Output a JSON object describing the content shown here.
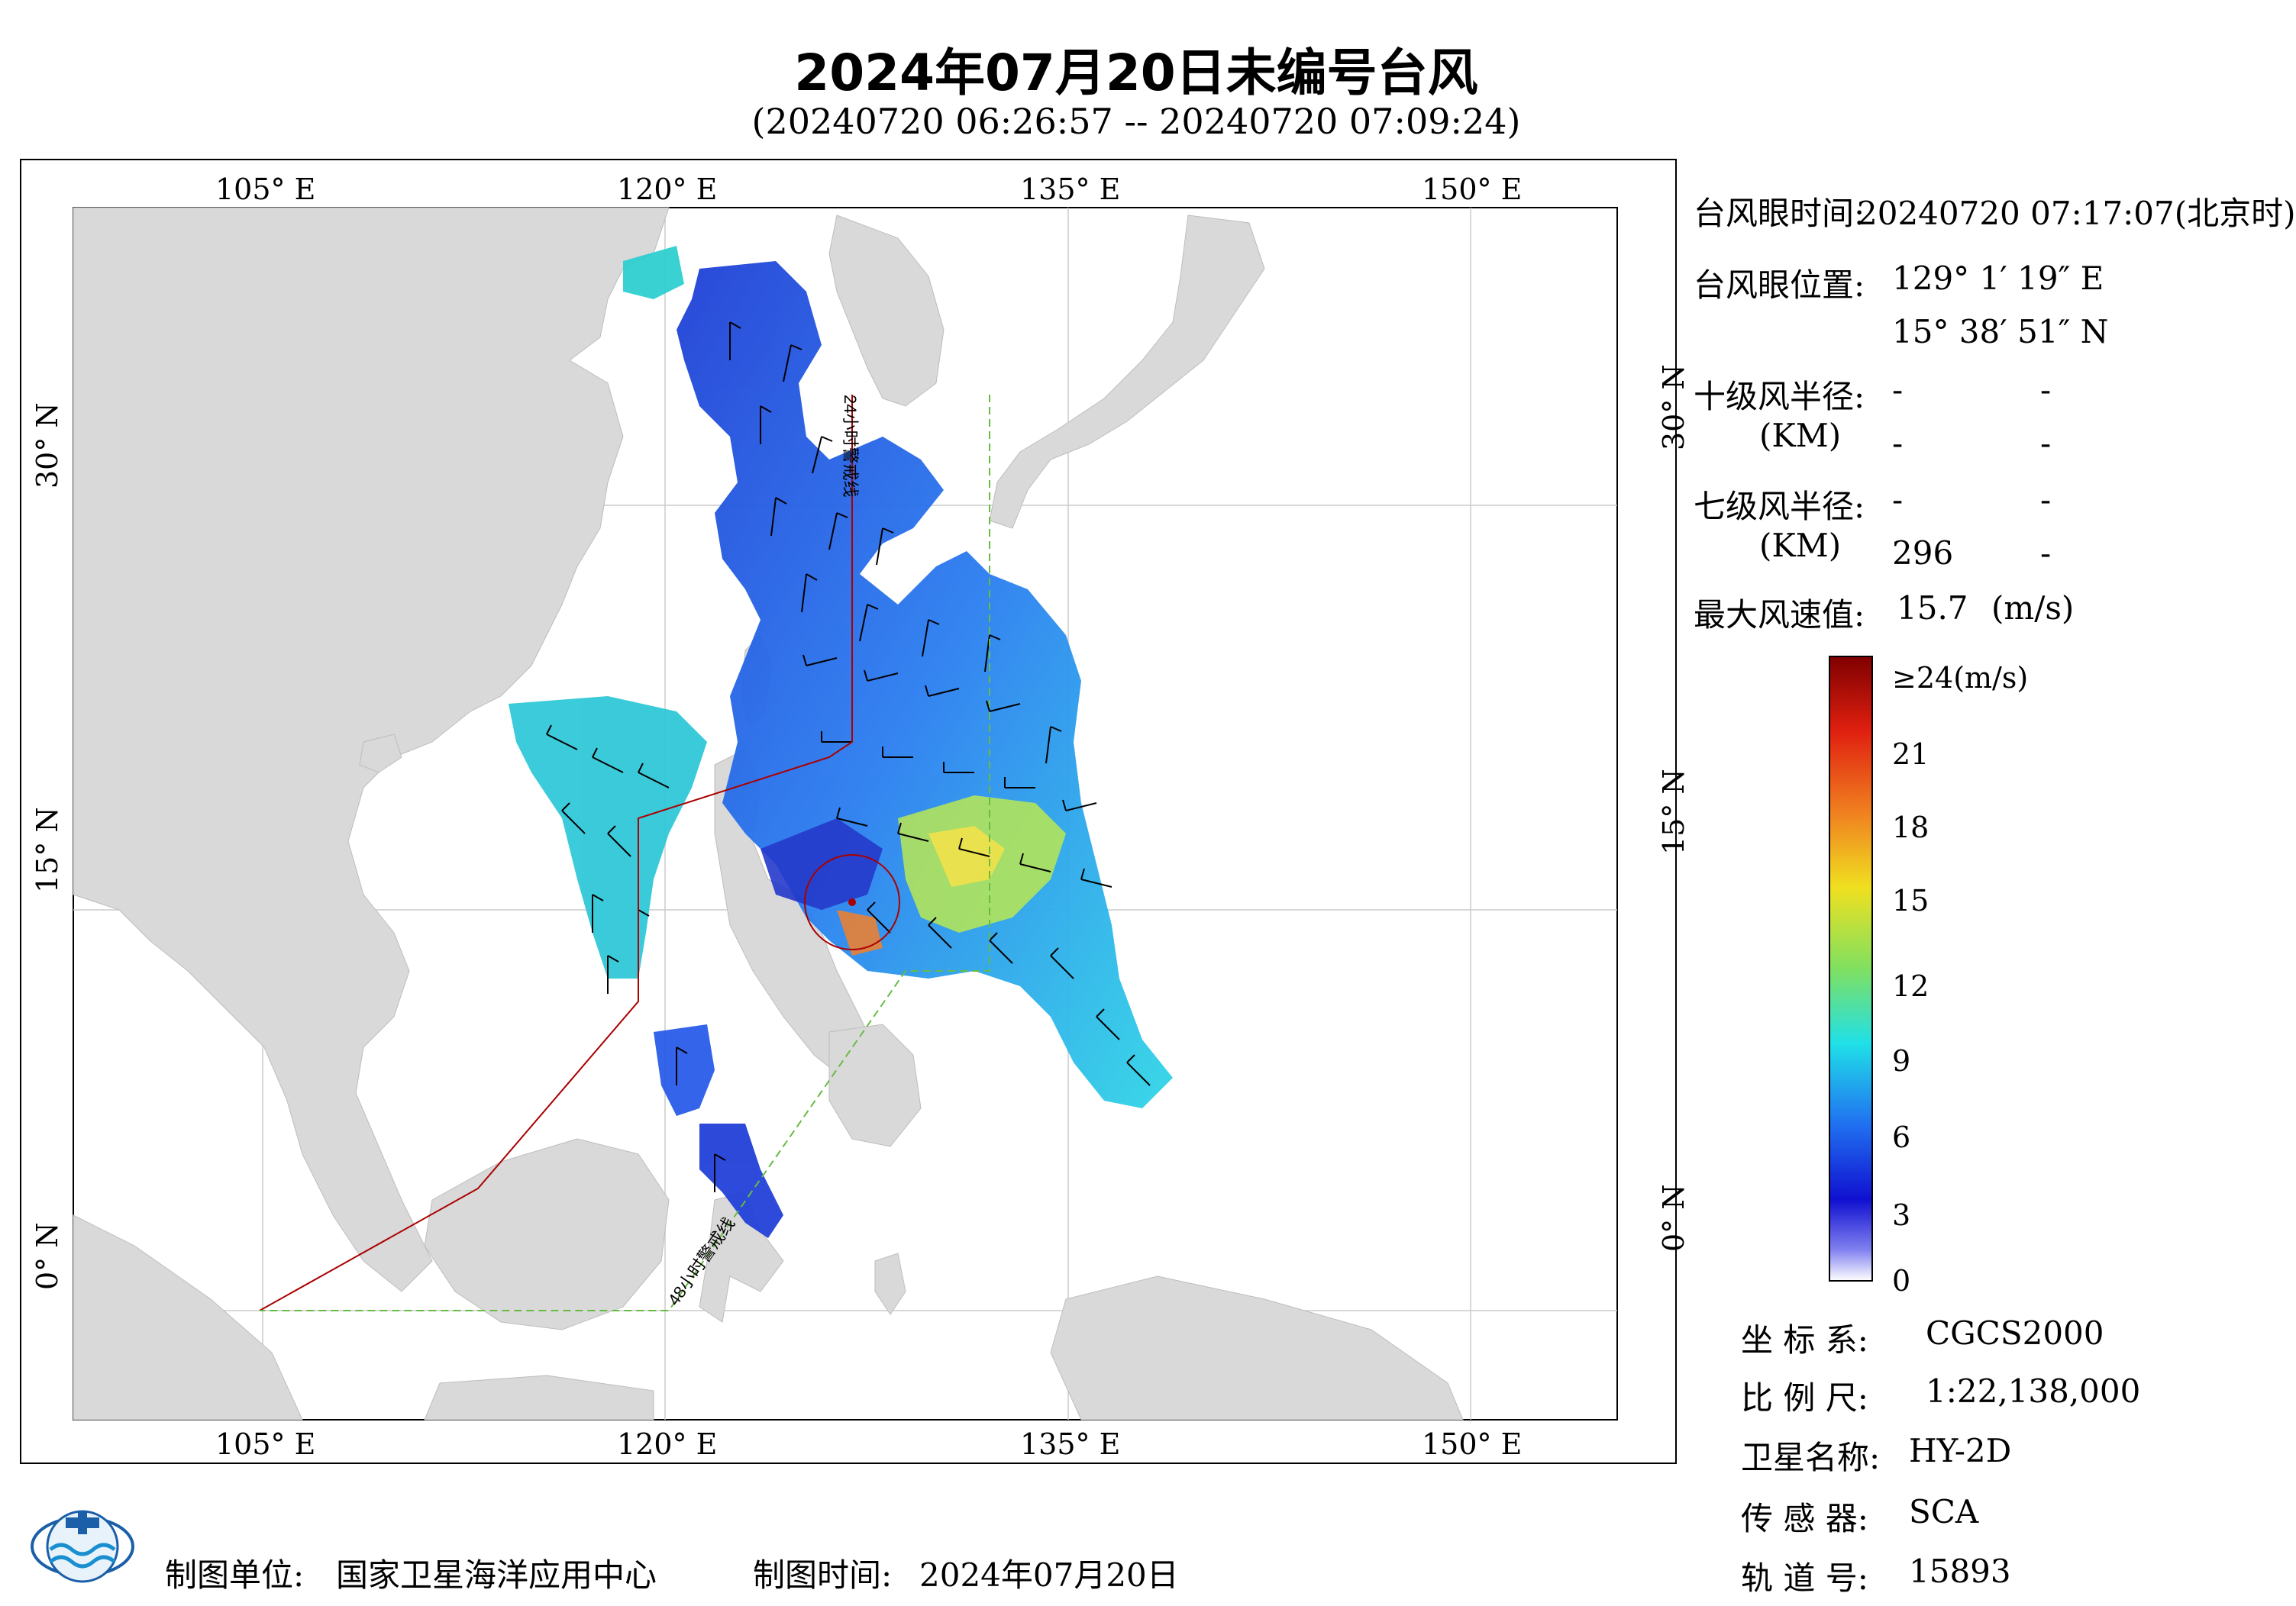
{
  "header": {
    "title": "2024年07月20日未编号台风",
    "subtitle": "(20240720 06:26:57 -- 20240720 07:09:24)"
  },
  "map": {
    "lon_labels_top": [
      "105° E",
      "120° E",
      "135° E",
      "150° E"
    ],
    "lon_labels_bottom": [
      "105° E",
      "120° E",
      "135° E",
      "150° E"
    ],
    "lat_labels_left": [
      "30° N",
      "15° N",
      "0° N"
    ],
    "lat_labels_right": [
      "30° N",
      "15° N",
      "0° N"
    ],
    "line_24h": "24小时警戒线",
    "line_48h": "48小时警戒线",
    "colors": {
      "land": "#d9d9d9",
      "sea": "#ffffff",
      "line_24h": "#aa0000",
      "line_48h": "#66bb44"
    }
  },
  "info": {
    "eye_time_label": "台风眼时间:",
    "eye_time_value": "20240720 07:17:07(北京时)",
    "eye_pos_label": "台风眼位置:",
    "eye_pos_lon": "129° 1′ 19″ E",
    "eye_pos_lat": "15° 38′ 51″ N",
    "r10_label": "十级风半径:",
    "r10_unit": "(KM)",
    "r10_row1": [
      "-",
      "-"
    ],
    "r10_row2": [
      "-",
      "-"
    ],
    "r7_label": "七级风半径:",
    "r7_unit": "(KM)",
    "r7_row1": [
      "-",
      "-"
    ],
    "r7_row2": [
      "296",
      "-"
    ],
    "maxwind_label": "最大风速值:",
    "maxwind_value": "15.7",
    "maxwind_unit": "(m/s)"
  },
  "colorbar": {
    "top_label": "≥24(m/s)",
    "ticks": [
      "21",
      "18",
      "15",
      "12",
      "9",
      "6",
      "3",
      "0"
    ]
  },
  "meta": {
    "coord_label": "坐 标 系:",
    "coord_value": "CGCS2000",
    "scale_label": "比 例 尺:",
    "scale_value": "1:22,138,000",
    "satellite_label": "卫星名称:",
    "satellite_value": "HY-2D",
    "sensor_label": "传 感 器:",
    "sensor_value": "SCA",
    "orbit_label": "轨 道 号:",
    "orbit_value": "15893"
  },
  "footer": {
    "producer_label": "制图单位:",
    "producer_value": "国家卫星海洋应用中心",
    "date_label": "制图时间:",
    "date_value": "2024年07月20日"
  }
}
